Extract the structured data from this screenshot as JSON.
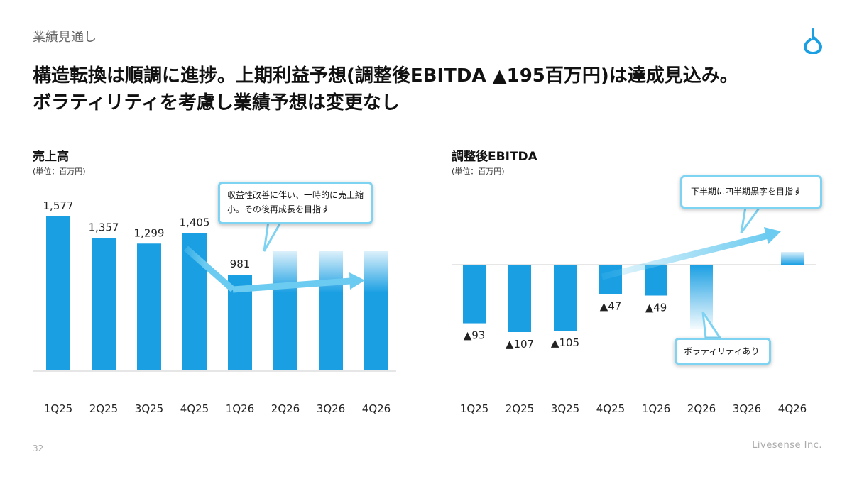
{
  "header": {
    "section_label": "業績見通し",
    "headline_line1": "構造転換は順調に進捗。上期利益予想(調整後EBITDA ▲195百万円)は達成見込み。",
    "headline_line2": "ボラティリティを考慮し業績予想は変更なし"
  },
  "footer": {
    "page_number": "32",
    "company": "Livesense Inc."
  },
  "colors": {
    "bar": "#1a9fe3",
    "callout_border": "#7fd3f2",
    "arrow": "#6ccbf0"
  },
  "callouts": {
    "sales_note": "収益性改善に伴い、一時的に売上縮小。その後再成長を目指す",
    "ebitda_note_top": "下半期に四半期黒字を目指す",
    "ebitda_note_bottom": "ボラティリティあり"
  },
  "chart_data": [
    {
      "type": "bar",
      "title": "売上高",
      "unit": "(単位：百万円)",
      "categories": [
        "1Q25",
        "2Q25",
        "3Q25",
        "4Q25",
        "1Q26",
        "2Q26",
        "3Q26",
        "4Q26"
      ],
      "values": [
        1577,
        1357,
        1299,
        1405,
        981,
        null,
        null,
        null
      ],
      "data_labels": [
        "1,577",
        "1,357",
        "1,299",
        "1,405",
        "981",
        "",
        "",
        ""
      ],
      "forecast_categories": [
        "2Q26",
        "3Q26",
        "4Q26"
      ],
      "ylim": [
        0,
        1700
      ]
    },
    {
      "type": "bar",
      "title": "調整後EBITDA",
      "unit": "(単位：百万円)",
      "categories": [
        "1Q25",
        "2Q25",
        "3Q25",
        "4Q25",
        "1Q26",
        "2Q26",
        "3Q26",
        "4Q26"
      ],
      "values": [
        -93,
        -107,
        -105,
        -47,
        -49,
        null,
        null,
        null
      ],
      "data_labels": [
        "▲93",
        "▲107",
        "▲105",
        "▲47",
        "▲49",
        "",
        "",
        ""
      ],
      "forecast_categories": [
        "2Q26",
        "3Q26",
        "4Q26"
      ],
      "ylim": [
        -160,
        140
      ]
    }
  ]
}
